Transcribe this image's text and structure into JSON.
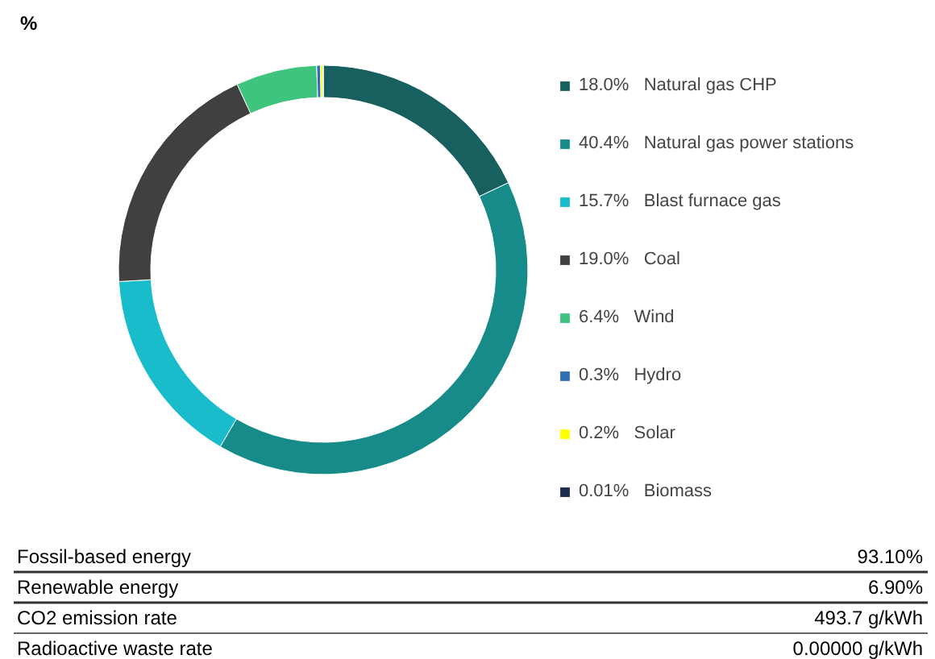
{
  "chart_data": {
    "type": "donut",
    "subtitle": "%",
    "categories": [
      "Natural gas CHP",
      "Natural gas power stations",
      "Blast furnace gas",
      "Coal",
      "Wind",
      "Hydro",
      "Solar",
      "Biomass"
    ],
    "values": [
      18.0,
      40.4,
      15.7,
      19.0,
      6.4,
      0.3,
      0.2,
      0.01
    ],
    "value_labels": [
      "18.0%",
      "40.4%",
      "15.7%",
      "19.0%",
      "6.4%",
      "0.3%",
      "0.2%",
      "0.01%"
    ],
    "colors": [
      "#17605f",
      "#178a8a",
      "#19bccb",
      "#404040",
      "#3ec47d",
      "#2f6fb5",
      "#ffff00",
      "#1b2b4b"
    ],
    "legend": "right",
    "annotations": [
      "Fossil-based energy",
      "93.10%",
      "Renewable energy",
      "6.90%",
      "CO2 emission rate",
      "493.7 g/kWh",
      "Radioactive waste rate",
      "0.00000 g/kWh"
    ]
  }
}
